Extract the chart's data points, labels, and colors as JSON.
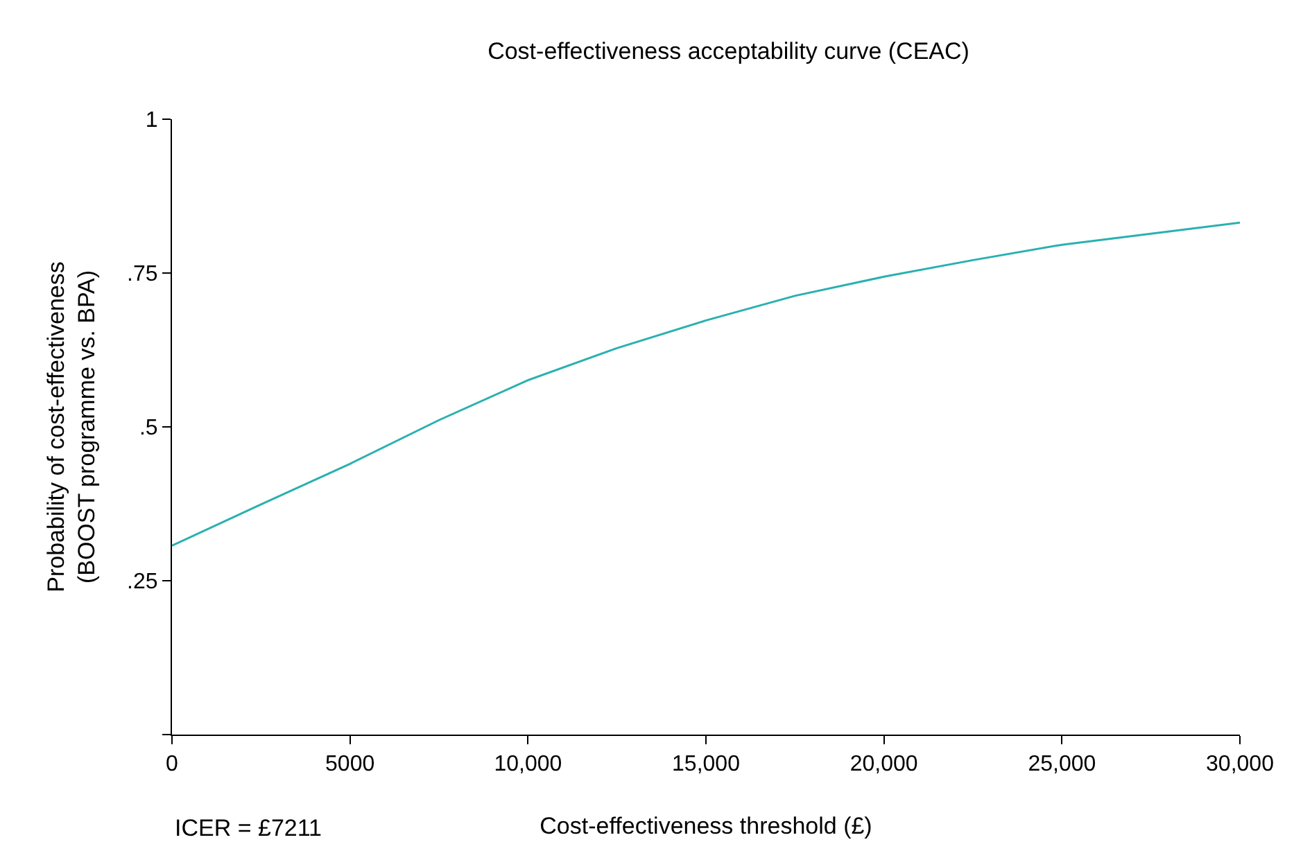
{
  "chart_data": {
    "type": "line",
    "title": "Cost-effectiveness acceptability curve (CEAC)",
    "xlabel": "Cost-effectiveness threshold (£)",
    "ylabel": "Probability of cost-effectiveness\n(BOOST programme vs. BPA)",
    "annotations": [
      "ICER = £7211"
    ],
    "x": [
      0,
      2500,
      5000,
      7500,
      10000,
      12500,
      15000,
      17500,
      20000,
      22500,
      25000,
      27500,
      30000
    ],
    "series": [
      {
        "color": "#2ab0b0",
        "values": [
          0.307,
          0.374,
          0.44,
          0.511,
          0.576,
          0.628,
          0.673,
          0.713,
          0.744,
          0.771,
          0.796,
          0.814,
          0.832
        ]
      }
    ],
    "xlim": [
      0,
      30000
    ],
    "ylim": [
      0,
      1
    ],
    "xticks": [
      0,
      5000,
      {
        "value": 10000,
        "label": "10,000"
      },
      {
        "value": 15000,
        "label": "15,000"
      },
      {
        "value": 20000,
        "label": "20,000"
      },
      {
        "value": 25000,
        "label": "25,000"
      },
      {
        "value": 30000,
        "label": "30,000"
      }
    ],
    "yticks": [
      {
        "value": 0,
        "label": null
      },
      {
        "value": 0.25,
        "label": ".25"
      },
      {
        "value": 0.5,
        "label": ".5"
      },
      {
        "value": 0.75,
        "label": ".75"
      },
      1
    ],
    "grid": false,
    "marker": "none",
    "line_style": "solid"
  }
}
